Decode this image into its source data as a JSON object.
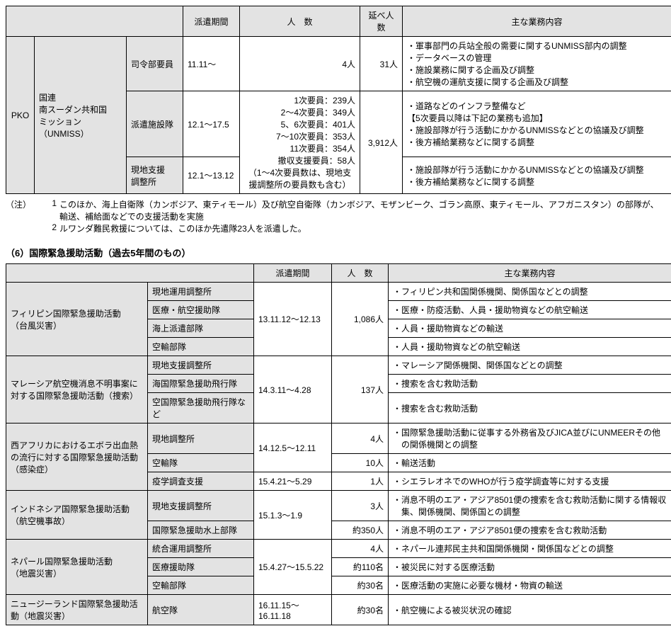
{
  "header": {
    "period": "派遣期間",
    "people": "人　数",
    "cumulative": "延べ人数",
    "duties": "主な業務内容"
  },
  "table1": {
    "colwidths": [
      "40",
      "130",
      "80",
      "80",
      "170",
      "60",
      "380"
    ],
    "pko_label": "PKO",
    "mission_label": "国連\n南スーダン共和国\nミッション\n（UNMISS）",
    "rows": [
      {
        "unit": "司令部要員",
        "period": "11.11～",
        "people": "4人",
        "cumulative": "31人",
        "cumulative_rowspan": 1,
        "duties": [
          "・軍事部門の兵站全般の需要に関するUNMISS部内の調整",
          "・データベースの管理",
          "・施設業務に関する企画及び調整",
          "・航空機の運航支援に関する企画及び調整"
        ]
      },
      {
        "unit": "派遣施設隊",
        "period": "12.1～17.5",
        "people_lines": [
          "1次要員：239人",
          "2～4次要員：349人",
          "5、6次要員：401人",
          "7～10次要員：353人",
          "11次要員：354人",
          "撤収支援要員：58人"
        ],
        "people_paren": "（1～4次要員数は、現地支援調整所の要員数も含む）",
        "cumulative": "3,912人",
        "cumulative_rowspan": 2,
        "duties": [
          "・道路などのインフラ整備など",
          "【5次要員以降は下記の業務も追加】",
          "・施設部隊が行う活動にかかるUNMISSなどとの協議及び調整",
          "・後方補給業務などに関する調整"
        ]
      },
      {
        "unit": "現地支援\n調整所",
        "period": "12.1～13.12",
        "duties": [
          "・施設部隊が行う活動にかかるUNMISSなどとの協議及び調整",
          "・後方補給業務などに関する調整"
        ]
      }
    ]
  },
  "notes": {
    "label": "（注）",
    "items": [
      {
        "num": "1",
        "text": "このほか、海上自衛隊（カンボジア、東ティモール）及び航空自衛隊（カンボジア、モザンビーク、ゴラン高原、東ティモール、アフガニスタン）の部隊が、輸送、補給面などでの支援活動を実施"
      },
      {
        "num": "2",
        "text": "ルワンダ難民救援については、このほか先遣隊23人を派遣した。"
      }
    ]
  },
  "section2_title": "（6）国際緊急援助活動（過去5年間のもの）",
  "header2": {
    "period": "派遣期間",
    "people": "人　数",
    "duties": "主な業務内容"
  },
  "table2": {
    "colwidths": [
      "200",
      "150",
      "110",
      "80",
      "400"
    ],
    "groups": [
      {
        "name": "フィリピン国際緊急援助活動\n（台風災害）",
        "rows": [
          {
            "unit": "現地運用調整所",
            "period": "13.11.12～12.13",
            "period_rowspan": 4,
            "people": "1,086人",
            "people_rowspan": 4,
            "duties": [
              "・フィリピン共和国関係機関、関係国などとの調整"
            ]
          },
          {
            "unit": "医療・航空援助隊",
            "duties": [
              "・医療・防疫活動、人員・援助物資などの航空輸送"
            ]
          },
          {
            "unit": "海上派遣部隊",
            "duties": [
              "・人員・援助物資などの輸送"
            ]
          },
          {
            "unit": "空輸部隊",
            "duties": [
              "・人員・援助物資などの航空輸送"
            ]
          }
        ]
      },
      {
        "name": "マレーシア航空機消息不明事案に対する国際緊急援助活動（捜索）",
        "rows": [
          {
            "unit": "現地支援調整所",
            "period": "14.3.11～4.28",
            "period_rowspan": 3,
            "people": "137人",
            "people_rowspan": 3,
            "duties": [
              "・マレーシア関係機関、関係国などとの調整"
            ]
          },
          {
            "unit": "海国際緊急援助飛行隊",
            "duties": [
              "・捜索を含む救助活動"
            ]
          },
          {
            "unit": "空国際緊急援助飛行隊など",
            "duties": [
              "・捜索を含む救助活動"
            ]
          }
        ]
      },
      {
        "name": "西アフリカにおけるエボラ出血熱の流行に対する国際緊急援助活動（感染症）",
        "rows": [
          {
            "unit": "現地調整所",
            "period": "14.12.5～12.11",
            "period_rowspan": 2,
            "people": "4人",
            "people_rowspan": 1,
            "duties": [
              "・国際緊急援助活動に従事する外務省及びJICA並びにUNMEERその他の関係機関との調整"
            ]
          },
          {
            "unit": "空輸隊",
            "people": "10人",
            "duties": [
              "・輸送活動"
            ]
          },
          {
            "unit": "疫学調査支援",
            "period": "15.4.21～5.29",
            "people": "1人",
            "duties": [
              "・シエラレオネでのWHOが行う疫学調査等に対する支援"
            ]
          }
        ]
      },
      {
        "name": "インドネシア国際緊急援助活動\n（航空機事故）",
        "rows": [
          {
            "unit": "現地支援調整所",
            "period": "15.1.3～1.9",
            "period_rowspan": 2,
            "people": "3人",
            "duties": [
              "・消息不明のエア・アジア8501便の捜索を含む救助活動に関する情報収集、関係機関、関係国との調整"
            ]
          },
          {
            "unit": "国際緊急援助水上部隊",
            "people": "約350人",
            "duties": [
              "・消息不明のエア・アジア8501便の捜索を含む救助活動"
            ]
          }
        ]
      },
      {
        "name": "ネパール国際緊急援助活動\n（地震災害）",
        "rows": [
          {
            "unit": "統合運用調整所",
            "period": "15.4.27～15.5.22",
            "period_rowspan": 3,
            "people": "4人",
            "duties": [
              "・ネパール連邦民主共和国関係機関・関係国などとの調整"
            ]
          },
          {
            "unit": "医療援助隊",
            "people": "約110名",
            "duties": [
              "・被災民に対する医療活動"
            ]
          },
          {
            "unit": "空輸部隊",
            "people": "約30名",
            "duties": [
              "・医療活動の実施に必要な機材・物資の輸送"
            ]
          }
        ]
      },
      {
        "name": "ニュージーランド国際緊急援助活動（地震災害）",
        "rows": [
          {
            "unit": "航空隊",
            "period": "16.11.15～\n16.11.18",
            "people": "約30名",
            "duties": [
              "・航空機による被災状況の確認"
            ]
          }
        ]
      }
    ]
  }
}
